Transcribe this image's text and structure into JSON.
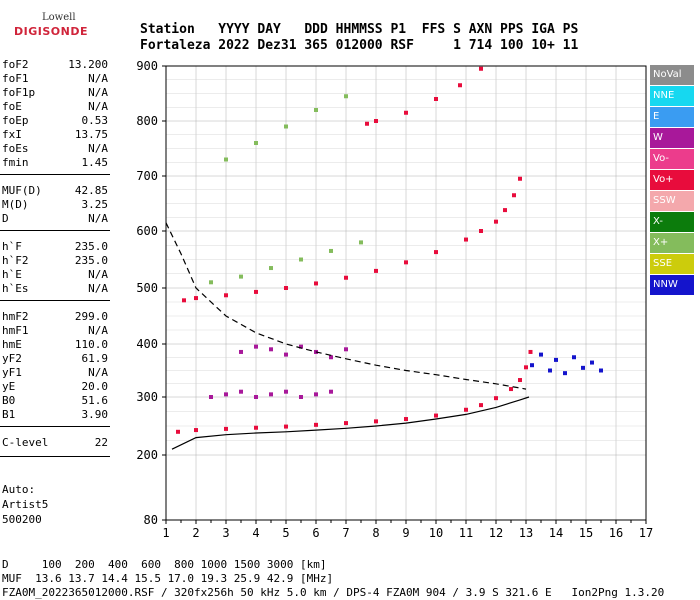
{
  "logo": {
    "line1": "Lowell",
    "line2": "DIGISONDE"
  },
  "header": {
    "line1": "Station   YYYY DAY   DDD HHMMSS P1  FFS S AXN PPS IGA PS",
    "line2": "Fortaleza 2022 Dez31 365 012000 RSF     1 714 100 10+ 11"
  },
  "params": [
    {
      "k": "foF2",
      "v": "13.200"
    },
    {
      "k": "foF1",
      "v": "N/A"
    },
    {
      "k": "foF1p",
      "v": "N/A"
    },
    {
      "k": "foE",
      "v": "N/A"
    },
    {
      "k": "foEp",
      "v": "0.53"
    },
    {
      "k": "fxI",
      "v": "13.75"
    },
    {
      "k": "foEs",
      "v": "N/A"
    },
    {
      "k": "fmin",
      "v": "1.45"
    },
    {
      "k": "MUF(D)",
      "v": "42.85"
    },
    {
      "k": "M(D)",
      "v": "3.25"
    },
    {
      "k": "D",
      "v": "N/A"
    },
    {
      "k": "h`F",
      "v": "235.0"
    },
    {
      "k": "h`F2",
      "v": "235.0"
    },
    {
      "k": "h`E",
      "v": "N/A"
    },
    {
      "k": "h`Es",
      "v": "N/A"
    },
    {
      "k": "hmF2",
      "v": "299.0"
    },
    {
      "k": "hmF1",
      "v": "N/A"
    },
    {
      "k": "hmE",
      "v": "110.0"
    },
    {
      "k": "yF2",
      "v": "61.9"
    },
    {
      "k": "yF1",
      "v": "N/A"
    },
    {
      "k": "yE",
      "v": "20.0"
    },
    {
      "k": "B0",
      "v": "51.6"
    },
    {
      "k": "B1",
      "v": "3.90"
    },
    {
      "k": "C-level",
      "v": "22"
    }
  ],
  "auto": {
    "line1": "Auto:",
    "line2": "Artist5",
    "line3": "500200"
  },
  "legend": [
    {
      "label": "NoVal",
      "color": "#8c8c8c"
    },
    {
      "label": "NNE",
      "color": "#16d8f0"
    },
    {
      "label": "E",
      "color": "#3a9cf2"
    },
    {
      "label": "W",
      "color": "#a8189a"
    },
    {
      "label": "Vo-",
      "color": "#ec3c8c"
    },
    {
      "label": "Vo+",
      "color": "#e80c3c"
    },
    {
      "label": "SSW",
      "color": "#f4a8ac"
    },
    {
      "label": "X-",
      "color": "#0c7c0c"
    },
    {
      "label": "X+",
      "color": "#84bc5c"
    },
    {
      "label": "SSE",
      "color": "#cccc0c"
    },
    {
      "label": "NNW",
      "color": "#1414cc"
    }
  ],
  "footer": {
    "line1": "D     100  200  400  600  800 1000 1500 3000 [km]",
    "line2": "MUF  13.6 13.7 14.4 15.5 17.0 19.3 25.9 42.9 [MHz]",
    "line3": "FZA0M_2022365012000.RSF / 320fx256h 50 kHz 5.0 km / DPS-4 FZA0M 904 / 3.9 S 321.6 E   Ion2Png 1.3.20"
  },
  "chart_data": {
    "type": "scatter",
    "title": "",
    "xlabel": "",
    "ylabel": "",
    "xlim": [
      1,
      17
    ],
    "ylim": [
      80,
      900
    ],
    "yscale": "nonlinear",
    "x_ticks": [
      "1",
      "2",
      "3",
      "4",
      "5",
      "6",
      "7",
      "8",
      "9",
      "10",
      "11",
      "12",
      "13",
      "14",
      "15",
      "16",
      "17"
    ],
    "y_ticks": [
      "80",
      "200",
      "300",
      "400",
      "500",
      "600",
      "700",
      "800",
      "900"
    ],
    "grid": true,
    "series": [
      {
        "color": "#e80c3c",
        "points": [
          [
            1.4,
            240
          ],
          [
            2,
            243
          ],
          [
            3,
            245
          ],
          [
            4,
            247
          ],
          [
            5,
            249
          ],
          [
            6,
            252
          ],
          [
            7,
            255
          ],
          [
            8,
            258
          ],
          [
            9,
            262
          ],
          [
            10,
            268
          ],
          [
            11,
            278
          ],
          [
            11.5,
            286
          ],
          [
            12,
            298
          ],
          [
            12.5,
            315
          ],
          [
            12.8,
            332
          ],
          [
            13.0,
            356
          ],
          [
            13.15,
            385
          ]
        ]
      },
      {
        "color": "#e80c3c",
        "points": [
          [
            1.6,
            478
          ],
          [
            2,
            482
          ],
          [
            3,
            487
          ],
          [
            4,
            493
          ],
          [
            5,
            500
          ],
          [
            6,
            508
          ],
          [
            7,
            518
          ],
          [
            8,
            530
          ],
          [
            9,
            545
          ],
          [
            10,
            563
          ],
          [
            11,
            585
          ],
          [
            11.5,
            600
          ],
          [
            12,
            617
          ],
          [
            12.3,
            638
          ],
          [
            12.6,
            665
          ],
          [
            12.8,
            695
          ]
        ]
      },
      {
        "color": "#e80c3c",
        "points": [
          [
            7.7,
            795
          ],
          [
            8,
            800
          ],
          [
            9,
            815
          ],
          [
            10,
            840
          ],
          [
            10.8,
            865
          ],
          [
            11.5,
            895
          ]
        ]
      },
      {
        "color": "#a8189a",
        "points": [
          [
            2.5,
            300
          ],
          [
            3,
            305
          ],
          [
            3.5,
            310
          ],
          [
            4,
            300
          ],
          [
            4.5,
            305
          ],
          [
            5,
            310
          ],
          [
            5.5,
            300
          ],
          [
            6,
            305
          ],
          [
            6.5,
            310
          ]
        ]
      },
      {
        "color": "#a8189a",
        "points": [
          [
            3.5,
            385
          ],
          [
            4,
            395
          ],
          [
            4.5,
            390
          ],
          [
            5,
            380
          ],
          [
            5.5,
            395
          ],
          [
            6,
            385
          ],
          [
            6.5,
            375
          ],
          [
            7,
            390
          ]
        ]
      },
      {
        "color": "#1414cc",
        "points": [
          [
            13.2,
            360
          ],
          [
            13.5,
            380
          ],
          [
            13.8,
            350
          ],
          [
            14,
            370
          ],
          [
            14.3,
            345
          ],
          [
            14.6,
            375
          ],
          [
            14.9,
            355
          ],
          [
            15.2,
            365
          ],
          [
            15.5,
            350
          ]
        ]
      },
      {
        "color": "#84bc5c",
        "points": [
          [
            2.5,
            510
          ],
          [
            3.5,
            520
          ],
          [
            4.5,
            535
          ],
          [
            5.5,
            550
          ],
          [
            6.5,
            565
          ],
          [
            7.5,
            580
          ]
        ]
      },
      {
        "color": "#84bc5c",
        "points": [
          [
            3,
            730
          ],
          [
            4,
            760
          ],
          [
            5,
            790
          ],
          [
            6,
            820
          ],
          [
            7,
            845
          ]
        ]
      }
    ],
    "lines": [
      {
        "style": "solid",
        "color": "#000000",
        "points": [
          [
            1.2,
            210
          ],
          [
            2,
            230
          ],
          [
            3,
            235
          ],
          [
            4,
            238
          ],
          [
            5,
            240
          ],
          [
            6,
            243
          ],
          [
            7,
            246
          ],
          [
            8,
            250
          ],
          [
            9,
            255
          ],
          [
            10,
            262
          ],
          [
            11,
            270
          ],
          [
            12,
            282
          ],
          [
            12.8,
            295
          ],
          [
            13.1,
            300
          ]
        ]
      },
      {
        "style": "dashed",
        "color": "#000000",
        "points": [
          [
            1,
            615
          ],
          [
            1.5,
            560
          ],
          [
            2,
            500
          ],
          [
            3,
            450
          ],
          [
            4,
            420
          ],
          [
            5,
            400
          ],
          [
            6,
            385
          ],
          [
            7,
            372
          ],
          [
            8,
            360
          ],
          [
            9,
            350
          ],
          [
            10,
            342
          ],
          [
            11,
            333
          ],
          [
            12,
            325
          ],
          [
            13,
            315
          ]
        ]
      }
    ]
  }
}
